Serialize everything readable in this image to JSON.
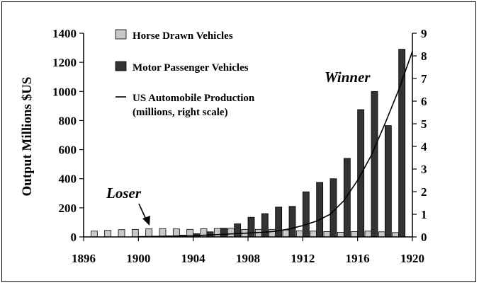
{
  "chart_data": {
    "type": "bar",
    "title": "",
    "ylabel": "Output Millions $US",
    "y2label": "",
    "xlabel": "",
    "ylim": [
      0,
      1400
    ],
    "y2lim": [
      0,
      9
    ],
    "xlim": [
      1896,
      1920
    ],
    "x_ticks": [
      "1896",
      "1900",
      "1904",
      "1908",
      "1912",
      "1916",
      "1920"
    ],
    "y_ticks": [
      "0",
      "200",
      "400",
      "600",
      "800",
      "1000",
      "1200",
      "1400"
    ],
    "y2_ticks": [
      "0",
      "1",
      "2",
      "3",
      "4",
      "5",
      "6",
      "7",
      "8",
      "9"
    ],
    "years": [
      1897,
      1898,
      1899,
      1900,
      1901,
      1902,
      1903,
      1904,
      1905,
      1906,
      1907,
      1908,
      1909,
      1910,
      1911,
      1912,
      1913,
      1914,
      1915,
      1916,
      1917,
      1918,
      1919
    ],
    "series": [
      {
        "name": "Horse Drawn Vehicles",
        "kind": "bar",
        "axis": "left",
        "color": "#c8c8c8",
        "values": [
          40,
          45,
          50,
          52,
          55,
          57,
          55,
          52,
          56,
          58,
          60,
          52,
          52,
          52,
          48,
          42,
          40,
          37,
          32,
          37,
          40,
          35,
          30
        ]
      },
      {
        "name": "Motor Passenger Vehicles",
        "kind": "bar",
        "axis": "left",
        "color": "#333333",
        "values": [
          0,
          0,
          0,
          2,
          5,
          7,
          12,
          22,
          35,
          60,
          90,
          135,
          160,
          205,
          210,
          310,
          375,
          400,
          540,
          875,
          1000,
          765,
          1290
        ]
      },
      {
        "name": "US Automobile Production",
        "name_line2": "(millions, right scale)",
        "kind": "line",
        "axis": "right",
        "color": "#000000",
        "x": [
          1900,
          1901,
          1902,
          1903,
          1904,
          1905,
          1906,
          1907,
          1908,
          1909,
          1910,
          1911,
          1912,
          1913,
          1914,
          1915,
          1916,
          1917,
          1918,
          1919,
          1920
        ],
        "values": [
          0.01,
          0.02,
          0.03,
          0.04,
          0.05,
          0.08,
          0.11,
          0.14,
          0.17,
          0.2,
          0.25,
          0.35,
          0.5,
          0.7,
          1.0,
          1.6,
          2.5,
          3.6,
          5.0,
          6.5,
          8.2
        ]
      }
    ],
    "annotations": {
      "winner": "Winner",
      "loser": "Loser"
    },
    "legend_position": "top-left",
    "grid": false
  }
}
